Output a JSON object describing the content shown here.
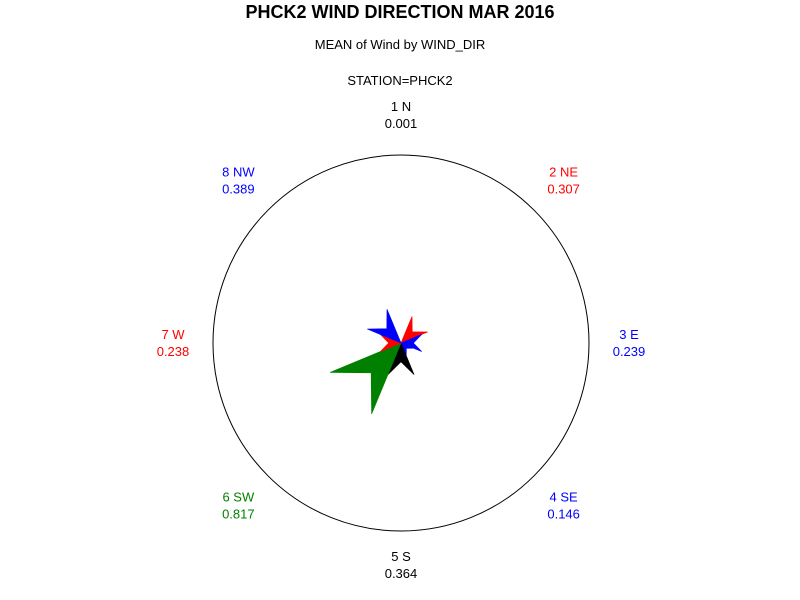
{
  "chart_data": {
    "type": "polar-star",
    "title": "PHCK2 WIND DIRECTION MAR 2016",
    "subtitle": "MEAN of Wind by WIND_DIR",
    "station_label": "STATION=PHCK2",
    "directions": [
      {
        "label": "1 N",
        "value": 0.001,
        "value_label": "0.001",
        "color": "#000000"
      },
      {
        "label": "2 NE",
        "value": 0.307,
        "value_label": "0.307",
        "color": "#ff0000"
      },
      {
        "label": "3 E",
        "value": 0.239,
        "value_label": "0.239",
        "color": "#0000ff"
      },
      {
        "label": "4 SE",
        "value": 0.146,
        "value_label": "0.146",
        "color": "#0000ff"
      },
      {
        "label": "5 S",
        "value": 0.364,
        "value_label": "0.364",
        "color": "#000000"
      },
      {
        "label": "6 SW",
        "value": 0.817,
        "value_label": "0.817",
        "color": "#008000"
      },
      {
        "label": "7 W",
        "value": 0.238,
        "value_label": "0.238",
        "color": "#ff0000"
      },
      {
        "label": "8 NW",
        "value": 0.389,
        "value_label": "0.389",
        "color": "#0000ff"
      }
    ],
    "max_value": 2.0
  }
}
